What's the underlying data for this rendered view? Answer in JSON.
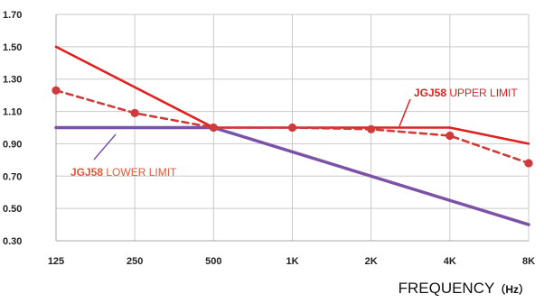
{
  "chart_data": {
    "type": "line",
    "categories": [
      "125",
      "250",
      "500",
      "1K",
      "2K",
      "4K",
      "8K"
    ],
    "ylim": [
      0.3,
      1.7
    ],
    "yticks": [
      "0.30",
      "0.50",
      "0.70",
      "0.90",
      "1.10",
      "1.30",
      "1.50",
      "1.70"
    ],
    "grid": true,
    "xlabel": {
      "main": "FREQUENCY",
      "unit": "（Hz）"
    },
    "series": [
      {
        "key": "upper",
        "color": "#e0201e",
        "style": "solid",
        "markers": false,
        "values": [
          1.5,
          null,
          1.0,
          null,
          null,
          1.0,
          0.9
        ]
      },
      {
        "key": "lower",
        "color": "#7b52a8",
        "style": "solid",
        "markers": false,
        "values": [
          1.0,
          null,
          1.0,
          null,
          null,
          null,
          0.4
        ]
      },
      {
        "key": "measured",
        "color": "#cf3b3a",
        "style": "dashed",
        "markers": true,
        "values": [
          1.23,
          1.09,
          1.0,
          1.0,
          0.99,
          0.95,
          0.78
        ]
      }
    ],
    "annotations": [
      {
        "key": "upper",
        "bold": "JGJ58",
        "text": " UPPER LIMIT",
        "color": "#e0201e"
      },
      {
        "key": "lower",
        "bold": "JGJ58",
        "text": " LOWER LIMIT",
        "color": "#e05a3a"
      }
    ]
  }
}
